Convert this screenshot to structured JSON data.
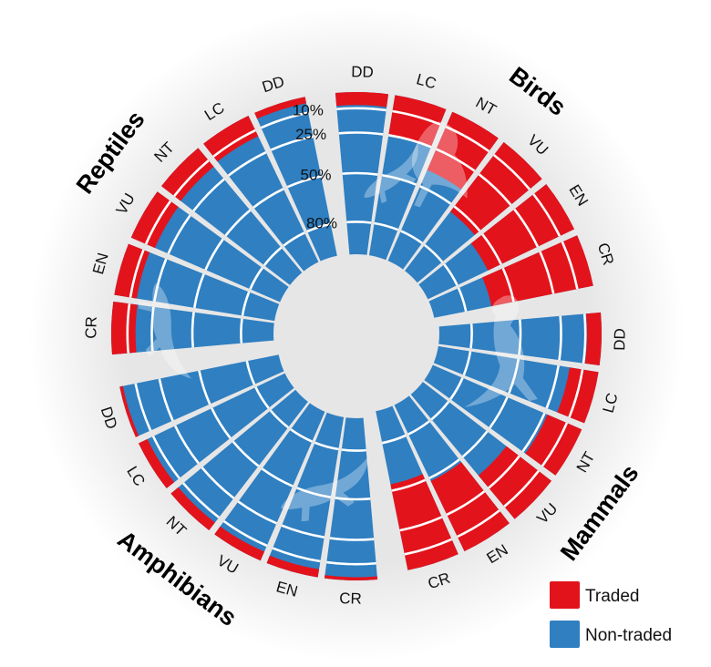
{
  "chart_data": {
    "type": "radial-stacked-bar",
    "radial_scale": "percent",
    "ring_labels": [
      "10%",
      "25%",
      "50%",
      "80%"
    ],
    "ring_values": [
      10,
      25,
      50,
      80
    ],
    "groups": [
      {
        "name": "Birds",
        "categories": [
          "DD",
          "LC",
          "NT",
          "VU",
          "EN",
          "CR"
        ],
        "traded_percent": [
          8,
          25,
          39,
          54,
          59,
          64
        ]
      },
      {
        "name": "Mammals",
        "categories": [
          "DD",
          "LC",
          "NT",
          "VU",
          "EN",
          "CR"
        ],
        "traded_percent": [
          9,
          18,
          23,
          35,
          48,
          54
        ]
      },
      {
        "name": "Amphibians",
        "categories": [
          "CR",
          "EN",
          "VU",
          "NT",
          "LC",
          "DD"
        ],
        "traded_percent": [
          2,
          5,
          6,
          6,
          6,
          2
        ]
      },
      {
        "name": "Reptiles",
        "categories": [
          "CR",
          "EN",
          "VU",
          "NT",
          "LC",
          "DD"
        ],
        "traded_percent": [
          15,
          14,
          16,
          15,
          14,
          4
        ]
      }
    ],
    "colors": {
      "traded": "#e3131b",
      "non_traded": "#2f7fc1"
    },
    "legend": {
      "position": "bottom-right",
      "entries": [
        {
          "key": "traded",
          "label": "Traded"
        },
        {
          "key": "non_traded",
          "label": "Non-traded"
        }
      ]
    }
  }
}
